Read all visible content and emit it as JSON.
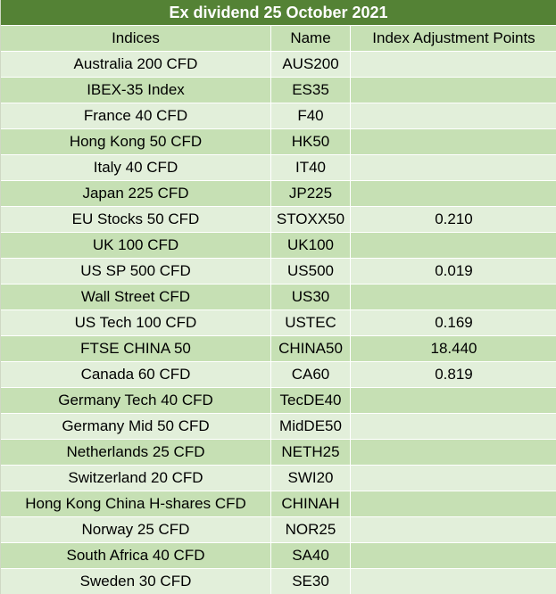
{
  "title": "Ex dividend 25 October 2021",
  "headers": {
    "indices": "Indices",
    "name": "Name",
    "points": "Index Adjustment Points"
  },
  "rows": [
    {
      "index": "Australia 200 CFD",
      "name": "AUS200",
      "points": ""
    },
    {
      "index": "IBEX-35 Index",
      "name": "ES35",
      "points": ""
    },
    {
      "index": "France 40 CFD",
      "name": "F40",
      "points": ""
    },
    {
      "index": "Hong Kong 50 CFD",
      "name": "HK50",
      "points": ""
    },
    {
      "index": "Italy 40 CFD",
      "name": "IT40",
      "points": ""
    },
    {
      "index": "Japan 225 CFD",
      "name": "JP225",
      "points": ""
    },
    {
      "index": "EU Stocks 50 CFD",
      "name": "STOXX50",
      "points": "0.210"
    },
    {
      "index": "UK 100 CFD",
      "name": "UK100",
      "points": ""
    },
    {
      "index": "US SP 500 CFD",
      "name": "US500",
      "points": "0.019"
    },
    {
      "index": "Wall Street CFD",
      "name": "US30",
      "points": ""
    },
    {
      "index": "US Tech 100 CFD",
      "name": "USTEC",
      "points": "0.169"
    },
    {
      "index": "FTSE CHINA 50",
      "name": "CHINA50",
      "points": "18.440"
    },
    {
      "index": "Canada 60 CFD",
      "name": "CA60",
      "points": "0.819"
    },
    {
      "index": "Germany Tech 40 CFD",
      "name": "TecDE40",
      "points": ""
    },
    {
      "index": "Germany Mid 50 CFD",
      "name": "MidDE50",
      "points": ""
    },
    {
      "index": "Netherlands 25 CFD",
      "name": "NETH25",
      "points": ""
    },
    {
      "index": "Switzerland 20 CFD",
      "name": "SWI20",
      "points": ""
    },
    {
      "index": "Hong Kong China H-shares CFD",
      "name": "CHINAH",
      "points": ""
    },
    {
      "index": "Norway 25 CFD",
      "name": "NOR25",
      "points": ""
    },
    {
      "index": "South Africa 40 CFD",
      "name": "SA40",
      "points": ""
    },
    {
      "index": "Sweden 30 CFD",
      "name": "SE30",
      "points": ""
    }
  ],
  "colors": {
    "title_bg": "#548235",
    "header_bg": "#c6e0b4",
    "row_light": "#e2efda",
    "row_dark": "#c6e0b4"
  }
}
